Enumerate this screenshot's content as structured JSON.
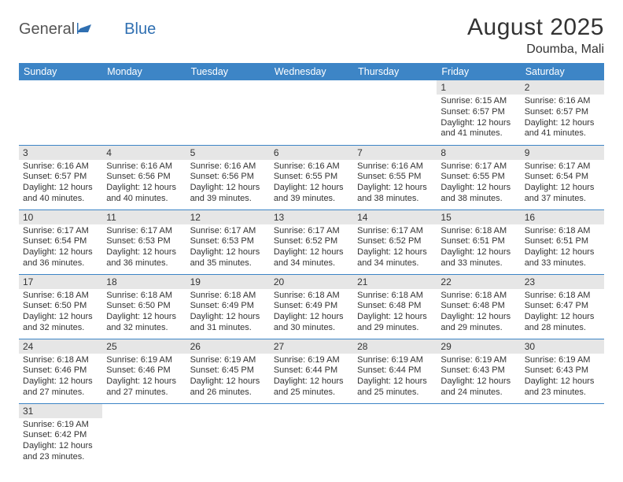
{
  "logo": {
    "general": "General",
    "blue": "Blue"
  },
  "title": "August 2025",
  "location": "Doumba, Mali",
  "header_bg": "#3d85c6",
  "daynum_bg": "#e6e6e6",
  "row_border": "#3d85c6",
  "weekdays": [
    "Sunday",
    "Monday",
    "Tuesday",
    "Wednesday",
    "Thursday",
    "Friday",
    "Saturday"
  ],
  "weeks": [
    [
      null,
      null,
      null,
      null,
      null,
      {
        "d": "1",
        "sr": "6:15 AM",
        "ss": "6:57 PM",
        "dl": "12 hours and 41 minutes."
      },
      {
        "d": "2",
        "sr": "6:16 AM",
        "ss": "6:57 PM",
        "dl": "12 hours and 41 minutes."
      }
    ],
    [
      {
        "d": "3",
        "sr": "6:16 AM",
        "ss": "6:57 PM",
        "dl": "12 hours and 40 minutes."
      },
      {
        "d": "4",
        "sr": "6:16 AM",
        "ss": "6:56 PM",
        "dl": "12 hours and 40 minutes."
      },
      {
        "d": "5",
        "sr": "6:16 AM",
        "ss": "6:56 PM",
        "dl": "12 hours and 39 minutes."
      },
      {
        "d": "6",
        "sr": "6:16 AM",
        "ss": "6:55 PM",
        "dl": "12 hours and 39 minutes."
      },
      {
        "d": "7",
        "sr": "6:16 AM",
        "ss": "6:55 PM",
        "dl": "12 hours and 38 minutes."
      },
      {
        "d": "8",
        "sr": "6:17 AM",
        "ss": "6:55 PM",
        "dl": "12 hours and 38 minutes."
      },
      {
        "d": "9",
        "sr": "6:17 AM",
        "ss": "6:54 PM",
        "dl": "12 hours and 37 minutes."
      }
    ],
    [
      {
        "d": "10",
        "sr": "6:17 AM",
        "ss": "6:54 PM",
        "dl": "12 hours and 36 minutes."
      },
      {
        "d": "11",
        "sr": "6:17 AM",
        "ss": "6:53 PM",
        "dl": "12 hours and 36 minutes."
      },
      {
        "d": "12",
        "sr": "6:17 AM",
        "ss": "6:53 PM",
        "dl": "12 hours and 35 minutes."
      },
      {
        "d": "13",
        "sr": "6:17 AM",
        "ss": "6:52 PM",
        "dl": "12 hours and 34 minutes."
      },
      {
        "d": "14",
        "sr": "6:17 AM",
        "ss": "6:52 PM",
        "dl": "12 hours and 34 minutes."
      },
      {
        "d": "15",
        "sr": "6:18 AM",
        "ss": "6:51 PM",
        "dl": "12 hours and 33 minutes."
      },
      {
        "d": "16",
        "sr": "6:18 AM",
        "ss": "6:51 PM",
        "dl": "12 hours and 33 minutes."
      }
    ],
    [
      {
        "d": "17",
        "sr": "6:18 AM",
        "ss": "6:50 PM",
        "dl": "12 hours and 32 minutes."
      },
      {
        "d": "18",
        "sr": "6:18 AM",
        "ss": "6:50 PM",
        "dl": "12 hours and 32 minutes."
      },
      {
        "d": "19",
        "sr": "6:18 AM",
        "ss": "6:49 PM",
        "dl": "12 hours and 31 minutes."
      },
      {
        "d": "20",
        "sr": "6:18 AM",
        "ss": "6:49 PM",
        "dl": "12 hours and 30 minutes."
      },
      {
        "d": "21",
        "sr": "6:18 AM",
        "ss": "6:48 PM",
        "dl": "12 hours and 29 minutes."
      },
      {
        "d": "22",
        "sr": "6:18 AM",
        "ss": "6:48 PM",
        "dl": "12 hours and 29 minutes."
      },
      {
        "d": "23",
        "sr": "6:18 AM",
        "ss": "6:47 PM",
        "dl": "12 hours and 28 minutes."
      }
    ],
    [
      {
        "d": "24",
        "sr": "6:18 AM",
        "ss": "6:46 PM",
        "dl": "12 hours and 27 minutes."
      },
      {
        "d": "25",
        "sr": "6:19 AM",
        "ss": "6:46 PM",
        "dl": "12 hours and 27 minutes."
      },
      {
        "d": "26",
        "sr": "6:19 AM",
        "ss": "6:45 PM",
        "dl": "12 hours and 26 minutes."
      },
      {
        "d": "27",
        "sr": "6:19 AM",
        "ss": "6:44 PM",
        "dl": "12 hours and 25 minutes."
      },
      {
        "d": "28",
        "sr": "6:19 AM",
        "ss": "6:44 PM",
        "dl": "12 hours and 25 minutes."
      },
      {
        "d": "29",
        "sr": "6:19 AM",
        "ss": "6:43 PM",
        "dl": "12 hours and 24 minutes."
      },
      {
        "d": "30",
        "sr": "6:19 AM",
        "ss": "6:43 PM",
        "dl": "12 hours and 23 minutes."
      }
    ],
    [
      {
        "d": "31",
        "sr": "6:19 AM",
        "ss": "6:42 PM",
        "dl": "12 hours and 23 minutes."
      },
      null,
      null,
      null,
      null,
      null,
      null
    ]
  ],
  "labels": {
    "sunrise": "Sunrise: ",
    "sunset": "Sunset: ",
    "daylight": "Daylight: "
  }
}
